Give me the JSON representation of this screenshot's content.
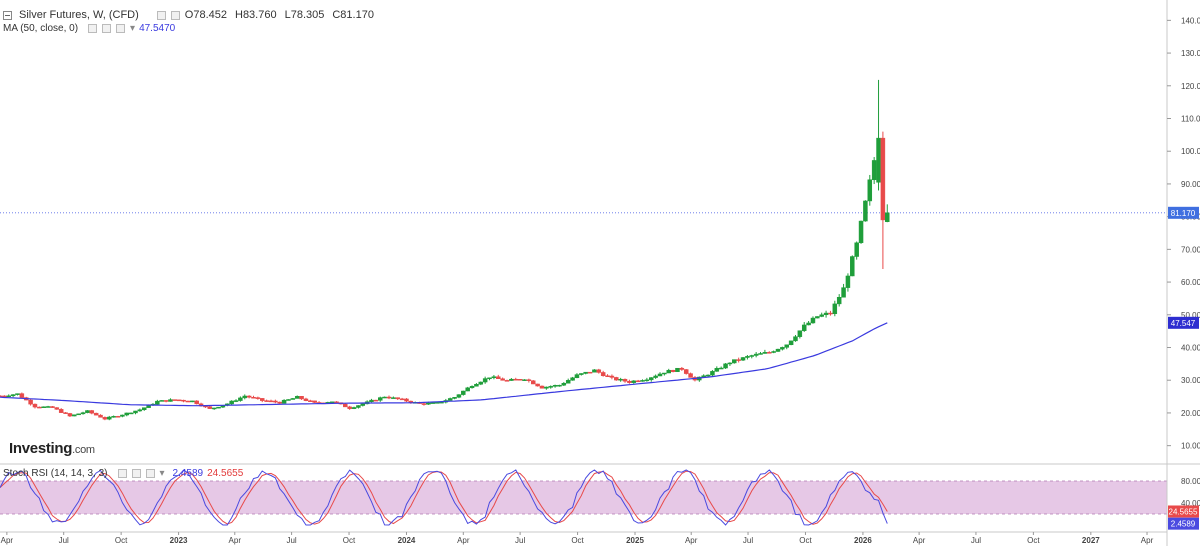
{
  "header": {
    "title": "Silver Futures, W, (CFD)",
    "open": "O78.452",
    "high": "H83.760",
    "low": "L78.305",
    "close": "C81.170"
  },
  "ma_legend": {
    "label": "MA (50, close, 0)",
    "value": "47.5470"
  },
  "rsi_legend": {
    "label": "Stoch RSI (14, 14, 3, 3)",
    "k": "2.4589",
    "d": "24.5655"
  },
  "logo": {
    "text": "Investing",
    "suffix": ".com"
  },
  "colors": {
    "up": "#1f9e3a",
    "down": "#e84a4a",
    "ma": "#3a3adf",
    "rsi_k": "#4a4ae0",
    "rsi_d": "#e84a4a",
    "rsi_band": "#e6c8e6",
    "price_tag": "#3f6fe0",
    "ma_tag": "#2d2dd0"
  },
  "chart_data": {
    "type": "candlestick",
    "title": "Silver Futures, W, (CFD)",
    "price_axis": {
      "ticks": [
        "140.000",
        "130.000",
        "120.000",
        "110.000",
        "100.000",
        "90.000",
        "80.000",
        "70.000",
        "60.000",
        "50.000",
        "40.000",
        "30.000",
        "20.000",
        "10.000"
      ],
      "range": [
        5,
        145
      ]
    },
    "time_axis": {
      "labels": [
        "Apr",
        "Jul",
        "Oct",
        "2023",
        "Apr",
        "Jul",
        "Oct",
        "2024",
        "Apr",
        "Jul",
        "Oct",
        "2025",
        "Apr",
        "Jul",
        "Oct",
        "2026",
        "Apr",
        "Jul",
        "Oct",
        "2027",
        "Apr"
      ],
      "start": "2022-03-21",
      "end": "2027-05-03"
    },
    "last_price": {
      "value": 81.17,
      "label": "81.170"
    },
    "ma_last": {
      "value": 47.547,
      "label": "47.547"
    },
    "price_anchors": [
      [
        "2022-03-21",
        25.2
      ],
      [
        "2022-04-18",
        25.8
      ],
      [
        "2022-05-16",
        22.0
      ],
      [
        "2022-06-13",
        21.6
      ],
      [
        "2022-07-11",
        19.0
      ],
      [
        "2022-08-08",
        20.5
      ],
      [
        "2022-09-05",
        18.2
      ],
      [
        "2022-10-03",
        19.5
      ],
      [
        "2022-10-31",
        21.0
      ],
      [
        "2022-11-28",
        23.5
      ],
      [
        "2022-12-26",
        24.0
      ],
      [
        "2023-01-23",
        23.6
      ],
      [
        "2023-02-20",
        21.2
      ],
      [
        "2023-03-20",
        22.8
      ],
      [
        "2023-04-17",
        25.2
      ],
      [
        "2023-05-15",
        23.8
      ],
      [
        "2023-06-12",
        23.2
      ],
      [
        "2023-07-10",
        24.8
      ],
      [
        "2023-08-07",
        23.0
      ],
      [
        "2023-09-04",
        23.5
      ],
      [
        "2023-10-02",
        21.5
      ],
      [
        "2023-10-30",
        23.2
      ],
      [
        "2023-11-27",
        25.0
      ],
      [
        "2023-12-25",
        24.0
      ],
      [
        "2024-01-22",
        22.8
      ],
      [
        "2024-02-19",
        23.0
      ],
      [
        "2024-03-18",
        24.8
      ],
      [
        "2024-04-15",
        28.5
      ],
      [
        "2024-05-13",
        31.0
      ],
      [
        "2024-06-10",
        29.8
      ],
      [
        "2024-07-08",
        30.5
      ],
      [
        "2024-08-05",
        27.8
      ],
      [
        "2024-09-02",
        28.5
      ],
      [
        "2024-09-30",
        31.5
      ],
      [
        "2024-10-28",
        33.0
      ],
      [
        "2024-11-25",
        30.5
      ],
      [
        "2024-12-23",
        29.5
      ],
      [
        "2025-01-20",
        30.5
      ],
      [
        "2025-02-17",
        32.5
      ],
      [
        "2025-03-17",
        33.5
      ],
      [
        "2025-04-07",
        30.0
      ],
      [
        "2025-05-05",
        32.5
      ],
      [
        "2025-06-02",
        35.5
      ],
      [
        "2025-07-07",
        37.5
      ],
      [
        "2025-08-04",
        38.5
      ],
      [
        "2025-09-01",
        41.0
      ],
      [
        "2025-09-29",
        46.5
      ],
      [
        "2025-10-20",
        49.5
      ],
      [
        "2025-11-10",
        50.5
      ],
      [
        "2025-12-01",
        58.0
      ],
      [
        "2025-12-22",
        71.5
      ],
      [
        "2026-01-12",
        90.5
      ],
      [
        "2026-01-26",
        104.0
      ],
      [
        "2026-02-02",
        79.0
      ],
      [
        "2026-02-09",
        81.17
      ]
    ],
    "ma_anchors": [
      [
        "2022-03-21",
        24.8
      ],
      [
        "2022-07-01",
        23.8
      ],
      [
        "2022-10-15",
        22.5
      ],
      [
        "2023-02-01",
        22.2
      ],
      [
        "2023-06-01",
        22.6
      ],
      [
        "2023-10-01",
        23.0
      ],
      [
        "2024-01-15",
        23.1
      ],
      [
        "2024-05-01",
        24.0
      ],
      [
        "2024-09-01",
        26.5
      ],
      [
        "2025-01-01",
        28.8
      ],
      [
        "2025-05-01",
        31.0
      ],
      [
        "2025-08-01",
        33.5
      ],
      [
        "2025-10-15",
        37.5
      ],
      [
        "2025-12-15",
        42.0
      ],
      [
        "2026-01-20",
        45.8
      ],
      [
        "2026-02-09",
        47.547
      ]
    ],
    "stoch_rsi": {
      "axis_ticks": [
        "80.000",
        "40.000"
      ],
      "band": [
        20,
        80
      ],
      "k_last": {
        "value": 2.4589,
        "label": "2.4589"
      },
      "d_last": {
        "value": 24.5655,
        "label": "24.5655"
      }
    }
  }
}
